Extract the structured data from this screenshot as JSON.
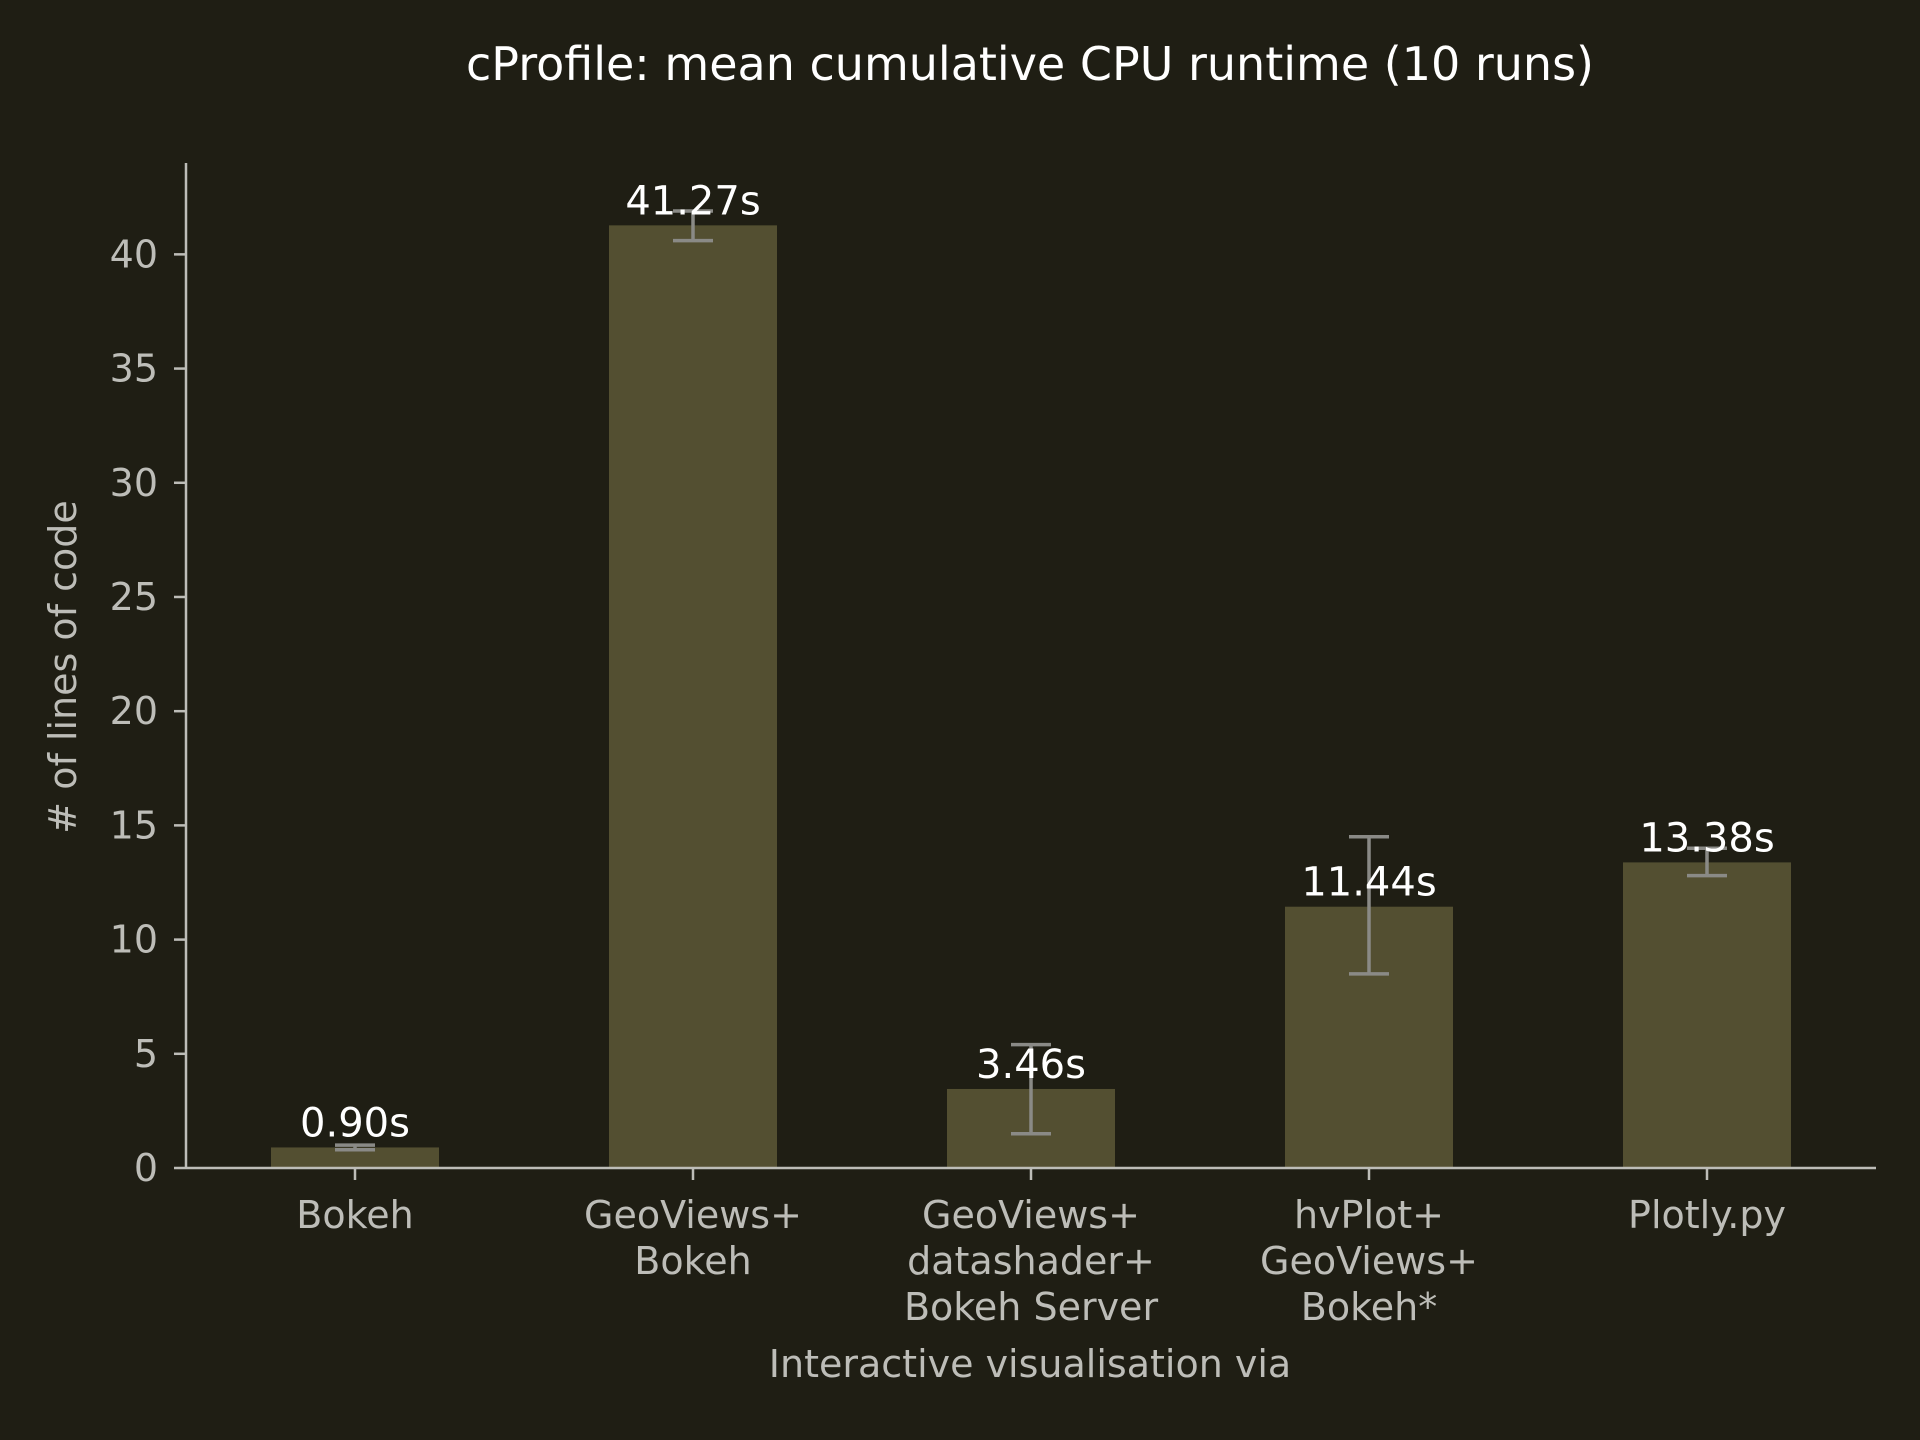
{
  "chart_data": {
    "type": "bar",
    "title": "cProfile: mean cumulative CPU runtime (10 runs)",
    "xlabel": "Interactive visualisation via",
    "ylabel": "# of lines of code",
    "categories": [
      [
        "Bokeh"
      ],
      [
        "GeoViews+",
        "Bokeh"
      ],
      [
        "GeoViews+",
        "datashader+",
        "Bokeh Server"
      ],
      [
        "hvPlot+",
        "GeoViews+",
        "Bokeh*"
      ],
      [
        "Plotly.py"
      ]
    ],
    "values": [
      0.9,
      41.27,
      3.46,
      11.44,
      13.38
    ],
    "error_low": [
      0.8,
      40.6,
      1.5,
      8.5,
      12.8
    ],
    "error_high": [
      1.0,
      41.9,
      5.4,
      14.5,
      14.0
    ],
    "data_labels": [
      "0.90s",
      "41.27s",
      "3.46s",
      "11.44s",
      "13.38s"
    ],
    "yticks": [
      0,
      5,
      10,
      15,
      20,
      25,
      30,
      35,
      40
    ],
    "ylim": [
      0,
      44
    ],
    "colors": {
      "background": "#1f1e14",
      "bar": "#534f31",
      "error": "#8a8a86",
      "axis": "#bdbdb8",
      "text": "#ffffff"
    }
  }
}
